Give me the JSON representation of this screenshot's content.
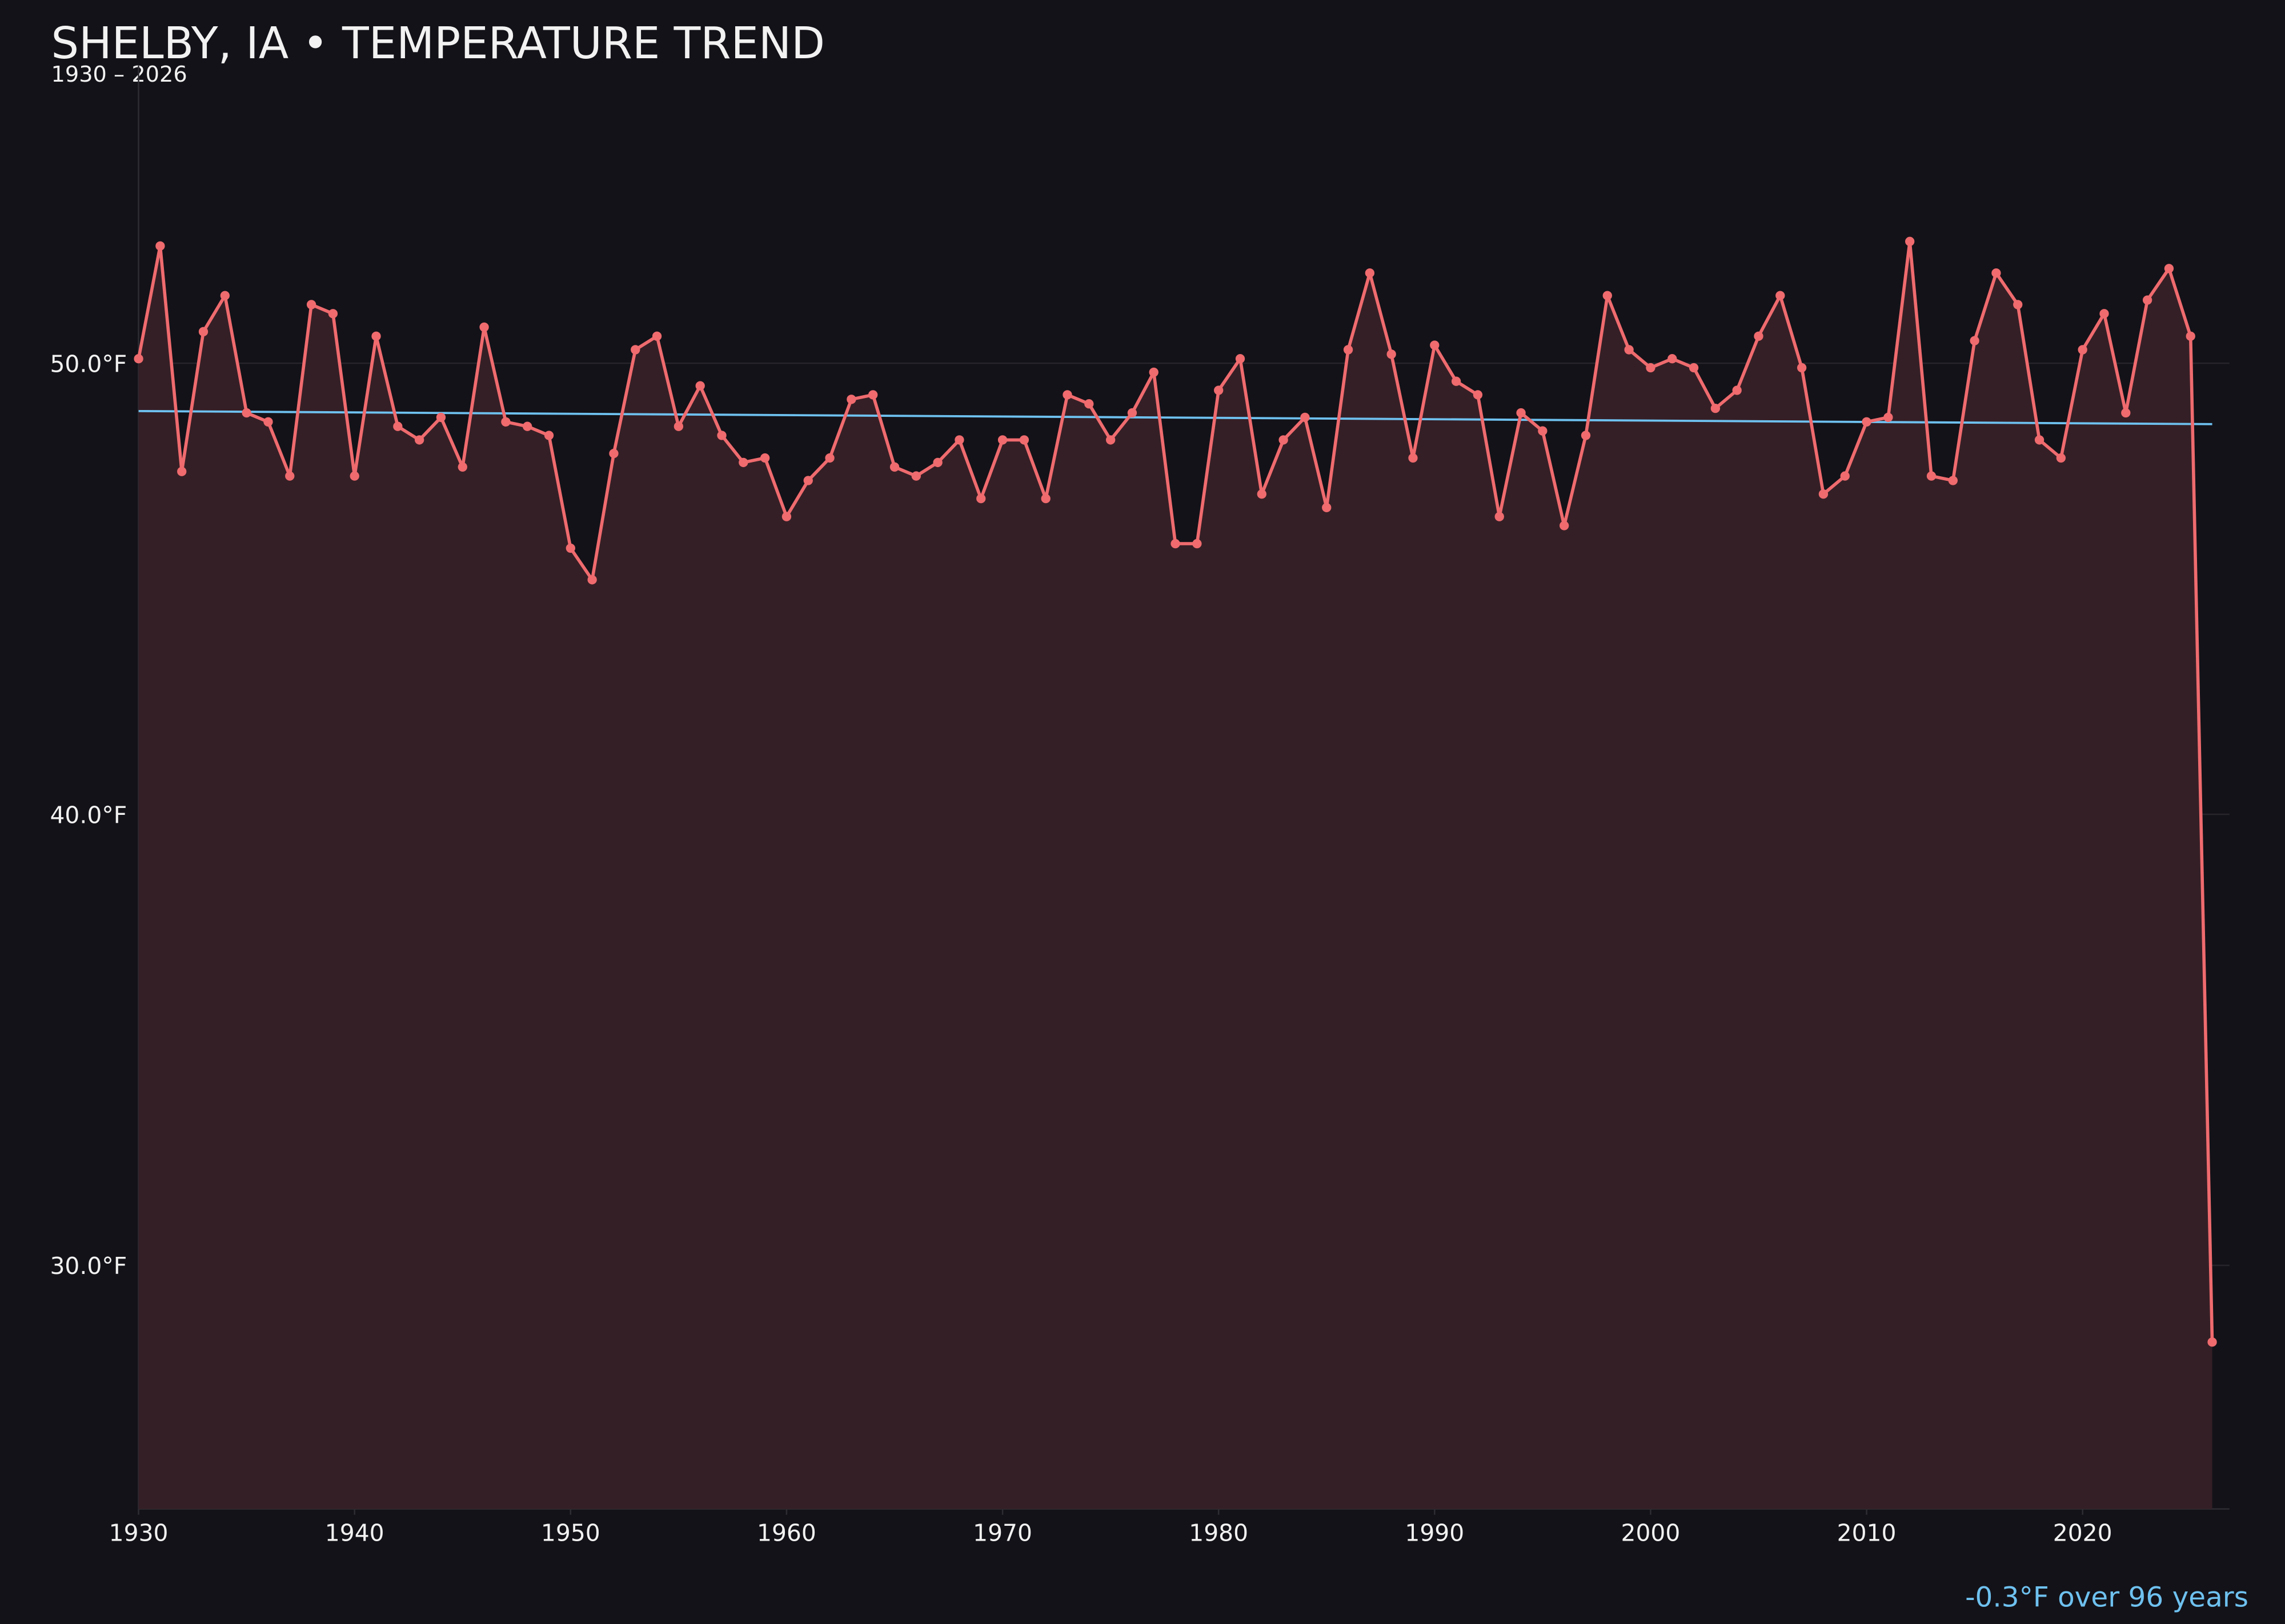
{
  "chart_data": {
    "type": "line",
    "title": "SHELBY, IA • TEMPERATURE TREND",
    "subtitle": "1930 – 2026",
    "annotation": "-0.3°F over 96 years",
    "x": [
      1930,
      1931,
      1932,
      1933,
      1934,
      1935,
      1936,
      1937,
      1938,
      1939,
      1940,
      1941,
      1942,
      1943,
      1944,
      1945,
      1946,
      1947,
      1948,
      1949,
      1950,
      1951,
      1952,
      1953,
      1954,
      1955,
      1956,
      1957,
      1958,
      1959,
      1960,
      1961,
      1962,
      1963,
      1964,
      1965,
      1966,
      1967,
      1968,
      1969,
      1970,
      1971,
      1972,
      1973,
      1974,
      1975,
      1976,
      1977,
      1978,
      1979,
      1980,
      1981,
      1982,
      1983,
      1984,
      1985,
      1986,
      1987,
      1988,
      1989,
      1990,
      1991,
      1992,
      1993,
      1994,
      1995,
      1996,
      1997,
      1998,
      1999,
      2000,
      2001,
      2002,
      2003,
      2004,
      2005,
      2006,
      2007,
      2008,
      2009,
      2010,
      2011,
      2012,
      2013,
      2014,
      2015,
      2016,
      2017,
      2018,
      2019,
      2020,
      2021,
      2022,
      2023,
      2024,
      2025,
      2026
    ],
    "values": [
      50.1,
      52.6,
      47.6,
      50.7,
      51.5,
      48.9,
      48.7,
      47.5,
      51.3,
      51.1,
      47.5,
      50.6,
      48.6,
      48.3,
      48.8,
      47.7,
      50.8,
      48.7,
      48.6,
      48.4,
      45.9,
      45.2,
      48.0,
      50.3,
      50.6,
      48.6,
      49.5,
      48.4,
      47.8,
      47.9,
      46.6,
      47.4,
      47.9,
      49.2,
      49.3,
      47.7,
      47.5,
      47.8,
      48.3,
      47.0,
      48.3,
      48.3,
      47.0,
      49.3,
      49.1,
      48.3,
      48.9,
      49.8,
      46.0,
      46.0,
      49.4,
      50.1,
      47.1,
      48.3,
      48.8,
      46.8,
      50.3,
      52.0,
      50.2,
      47.9,
      50.4,
      49.6,
      49.3,
      46.6,
      48.9,
      48.5,
      46.4,
      48.4,
      51.5,
      50.3,
      49.9,
      50.1,
      49.9,
      49.0,
      49.4,
      50.6,
      51.5,
      49.9,
      47.1,
      47.5,
      48.7,
      48.8,
      52.7,
      47.5,
      47.4,
      50.5,
      52.0,
      51.3,
      48.3,
      47.9,
      50.3,
      51.1,
      48.9,
      51.4,
      52.1,
      50.6,
      28.3
    ],
    "color": "#ef6b6e",
    "fill": "#351f26",
    "trend": {
      "x": [
        1930,
        2026
      ],
      "values": [
        48.94,
        48.65
      ],
      "color": "#6ec1ef"
    },
    "xlim": [
      1930,
      2026.8
    ],
    "ylim": [
      24.6,
      56.6
    ],
    "xticks": [
      1930,
      1940,
      1950,
      1960,
      1970,
      1980,
      1990,
      2000,
      2010,
      2020
    ],
    "yticks": [
      {
        "value": 30,
        "label": "30.0°F"
      },
      {
        "value": 40,
        "label": "40.0°F"
      },
      {
        "value": 50,
        "label": "50.0°F"
      }
    ],
    "grid": true
  }
}
